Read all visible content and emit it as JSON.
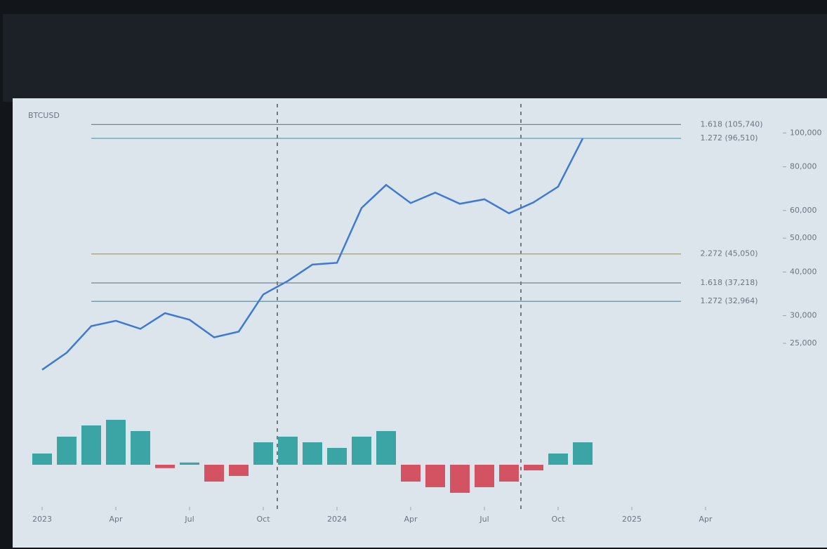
{
  "chart_data": [
    {
      "type": "line",
      "x": [
        0,
        1,
        2,
        3,
        4,
        5,
        6,
        7,
        8,
        9,
        10,
        11,
        12,
        13,
        14,
        15,
        16,
        17,
        18,
        19,
        20,
        21,
        22
      ],
      "series": [
        {
          "name": "BTCUSD",
          "color": "#3d7ad6",
          "values": [
            21000,
            23500,
            28000,
            29000,
            27500,
            30500,
            29200,
            26000,
            27000,
            34500,
            37700,
            42000,
            42500,
            61000,
            71000,
            63000,
            67500,
            62700,
            64600,
            58900,
            63300,
            70200,
            96400
          ]
        }
      ],
      "log_scale": true,
      "ylim": [
        18000,
        120000
      ],
      "yticks": [
        {
          "value": 100000,
          "label": "100,000"
        },
        {
          "value": 80000,
          "label": "80,000"
        },
        {
          "value": 60000,
          "label": "60,000"
        },
        {
          "value": 50000,
          "label": "50,000"
        },
        {
          "value": 40000,
          "label": "40,000"
        },
        {
          "value": 30000,
          "label": "30,000"
        },
        {
          "value": 25000,
          "label": "25,000"
        }
      ],
      "xlim": [
        -1,
        30
      ],
      "xticks": [
        {
          "value": 0,
          "label": "2023"
        },
        {
          "value": 3,
          "label": "Apr"
        },
        {
          "value": 6,
          "label": "Jul"
        },
        {
          "value": 9,
          "label": "Oct"
        },
        {
          "value": 12,
          "label": "2024"
        },
        {
          "value": 15,
          "label": "Apr"
        },
        {
          "value": 18,
          "label": "Jul"
        },
        {
          "value": 21,
          "label": "Oct"
        },
        {
          "value": 24,
          "label": "2025"
        },
        {
          "value": 27,
          "label": "Apr"
        }
      ],
      "levels": [
        {
          "label": "1.618 (105,740)",
          "value": 105740,
          "color": "#7a828a"
        },
        {
          "label": "1.272 (96,510)",
          "value": 96510,
          "color": "#3aa0b8"
        },
        {
          "label": "2.272 (45,050)",
          "value": 45050,
          "color": "#b0a040"
        },
        {
          "label": "1.618 (37,218)",
          "value": 37218,
          "color": "#7a828a"
        },
        {
          "label": "1.272 (32,964)",
          "value": 32964,
          "color": "#3aa0b8"
        }
      ]
    },
    {
      "type": "bar",
      "x": [
        0,
        1,
        2,
        3,
        4,
        5,
        6,
        7,
        8,
        9,
        10,
        11,
        12,
        13,
        14,
        15,
        16,
        17,
        18,
        19,
        20,
        21,
        22
      ],
      "values": [
        10,
        25,
        35,
        40,
        30,
        -3,
        2,
        -15,
        -10,
        20,
        25,
        20,
        15,
        25,
        30,
        -15,
        -20,
        -25,
        -20,
        -15,
        -5,
        10,
        20
      ],
      "ylim": [
        -30,
        45
      ],
      "positive_color": "#1f9a9a",
      "negative_color": "#d23a4a"
    }
  ]
}
